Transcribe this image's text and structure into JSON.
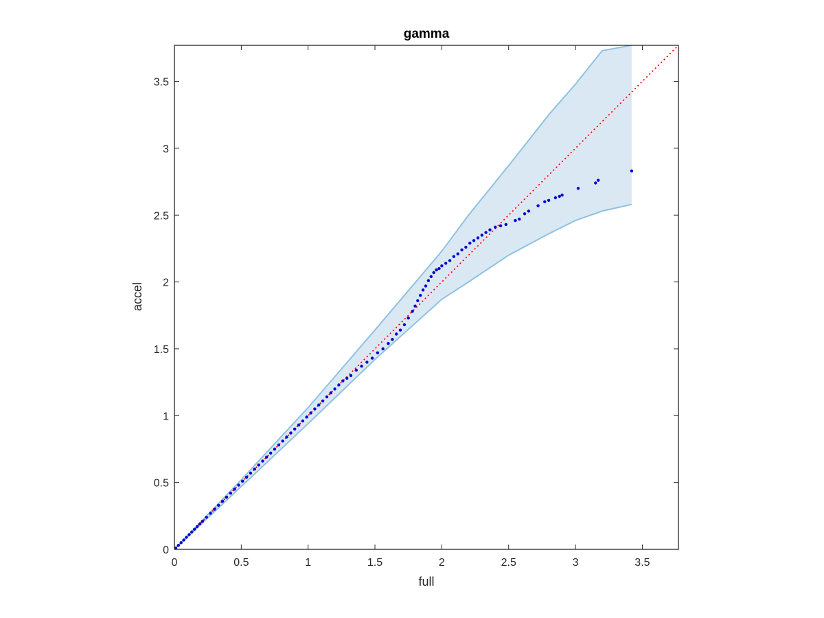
{
  "chart_data": {
    "type": "scatter",
    "title": "gamma",
    "xlabel": "full",
    "ylabel": "accel",
    "xlim": [
      0,
      3.77
    ],
    "ylim": [
      0,
      3.77
    ],
    "xticks": [
      0,
      0.5,
      1,
      1.5,
      2,
      2.5,
      3,
      3.5
    ],
    "yticks": [
      0,
      0.5,
      1,
      1.5,
      2,
      2.5,
      3,
      3.5
    ],
    "xtick_labels": [
      "0",
      "0.5",
      "1",
      "1.5",
      "2",
      "2.5",
      "3",
      "3.5"
    ],
    "ytick_labels": [
      "0",
      "0.5",
      "1",
      "1.5",
      "2",
      "2.5",
      "3",
      "3.5"
    ],
    "grid": false,
    "reference_line": {
      "style": "dotted",
      "color": "#ff0000",
      "from": [
        0,
        0
      ],
      "to": [
        3.77,
        3.77
      ]
    },
    "band": {
      "fill": "#dae8f4",
      "edge": "#8fc1e3",
      "upper": {
        "x": [
          0,
          0.5,
          1.0,
          1.5,
          2.0,
          2.2,
          2.5,
          2.8,
          3.0,
          3.2,
          3.42
        ],
        "y": [
          0,
          0.52,
          1.06,
          1.64,
          2.23,
          2.5,
          2.87,
          3.25,
          3.48,
          3.73,
          3.77
        ]
      },
      "lower": {
        "x": [
          0,
          0.5,
          1.0,
          1.5,
          2.0,
          2.2,
          2.5,
          2.8,
          3.0,
          3.2,
          3.42
        ],
        "y": [
          0,
          0.47,
          0.94,
          1.42,
          1.87,
          2.0,
          2.2,
          2.36,
          2.46,
          2.53,
          2.58
        ]
      }
    },
    "series_color": "#0000d8",
    "points": {
      "x": [
        0.01,
        0.03,
        0.05,
        0.07,
        0.09,
        0.11,
        0.13,
        0.15,
        0.17,
        0.19,
        0.21,
        0.24,
        0.27,
        0.3,
        0.33,
        0.36,
        0.39,
        0.42,
        0.45,
        0.48,
        0.51,
        0.54,
        0.57,
        0.6,
        0.63,
        0.66,
        0.69,
        0.72,
        0.75,
        0.78,
        0.81,
        0.84,
        0.87,
        0.9,
        0.93,
        0.96,
        0.99,
        1.02,
        1.05,
        1.08,
        1.11,
        1.14,
        1.17,
        1.2,
        1.23,
        1.26,
        1.29,
        1.32,
        1.36,
        1.4,
        1.44,
        1.48,
        1.52,
        1.56,
        1.6,
        1.63,
        1.66,
        1.69,
        1.72,
        1.75,
        1.78,
        1.8,
        1.82,
        1.84,
        1.86,
        1.88,
        1.9,
        1.92,
        1.94,
        1.96,
        1.98,
        2.0,
        2.03,
        2.06,
        2.09,
        2.12,
        2.15,
        2.18,
        2.21,
        2.24,
        2.27,
        2.3,
        2.33,
        2.36,
        2.4,
        2.44,
        2.48,
        2.55,
        2.58,
        2.62,
        2.65,
        2.72,
        2.77,
        2.8,
        2.85,
        2.88,
        2.9,
        3.02,
        3.15,
        3.17,
        3.42
      ],
      "y": [
        0.01,
        0.03,
        0.05,
        0.07,
        0.09,
        0.11,
        0.13,
        0.15,
        0.17,
        0.19,
        0.21,
        0.24,
        0.27,
        0.3,
        0.33,
        0.36,
        0.39,
        0.42,
        0.45,
        0.48,
        0.51,
        0.54,
        0.57,
        0.6,
        0.63,
        0.66,
        0.69,
        0.72,
        0.75,
        0.78,
        0.81,
        0.84,
        0.87,
        0.9,
        0.93,
        0.96,
        0.99,
        1.02,
        1.05,
        1.08,
        1.11,
        1.14,
        1.17,
        1.2,
        1.23,
        1.26,
        1.28,
        1.3,
        1.34,
        1.37,
        1.4,
        1.43,
        1.47,
        1.5,
        1.54,
        1.57,
        1.61,
        1.64,
        1.68,
        1.73,
        1.78,
        1.82,
        1.86,
        1.9,
        1.94,
        1.97,
        2.01,
        2.04,
        2.07,
        2.09,
        2.1,
        2.12,
        2.14,
        2.16,
        2.19,
        2.21,
        2.24,
        2.26,
        2.29,
        2.31,
        2.33,
        2.35,
        2.37,
        2.39,
        2.41,
        2.42,
        2.43,
        2.46,
        2.47,
        2.51,
        2.53,
        2.57,
        2.6,
        2.61,
        2.63,
        2.64,
        2.65,
        2.7,
        2.74,
        2.76,
        2.83
      ]
    }
  }
}
